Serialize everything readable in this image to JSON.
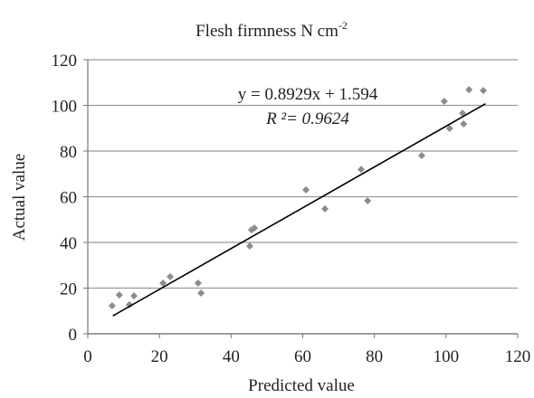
{
  "chart_data": {
    "type": "scatter",
    "title": "Flesh firmness N cm",
    "title_superscript": "-2",
    "xlabel": "Predicted value",
    "ylabel": "Actual value",
    "annotations": [
      "y = 0.8929x + 1.594",
      "R ²= 0.9624"
    ],
    "color": "#8c8c8c",
    "x": [
      6.8,
      8.8,
      11.6,
      12.9,
      21,
      23,
      30.8,
      31.6,
      45.2,
      45.7,
      46.5,
      60.9,
      66.2,
      76.3,
      78.1,
      93.2,
      99.5,
      101,
      104.6,
      104.9,
      106.4,
      110.4
    ],
    "values": [
      12.3,
      17,
      12.7,
      16.6,
      22.2,
      25,
      22.2,
      17.8,
      38.4,
      45.5,
      46.3,
      63,
      54.7,
      72,
      58.2,
      78,
      101.8,
      89.9,
      96.6,
      91.9,
      106.9,
      106.5
    ],
    "trendline": {
      "slope": 0.8929,
      "intercept": 1.594,
      "x": [
        7,
        111
      ],
      "color": "#000000"
    },
    "xlim": [
      0,
      120
    ],
    "xticks": [
      0,
      20,
      40,
      60,
      80,
      100,
      120
    ],
    "ylim": [
      0,
      120
    ],
    "yticks": [
      0,
      20,
      40,
      60,
      80,
      100,
      120
    ],
    "grid": true
  }
}
